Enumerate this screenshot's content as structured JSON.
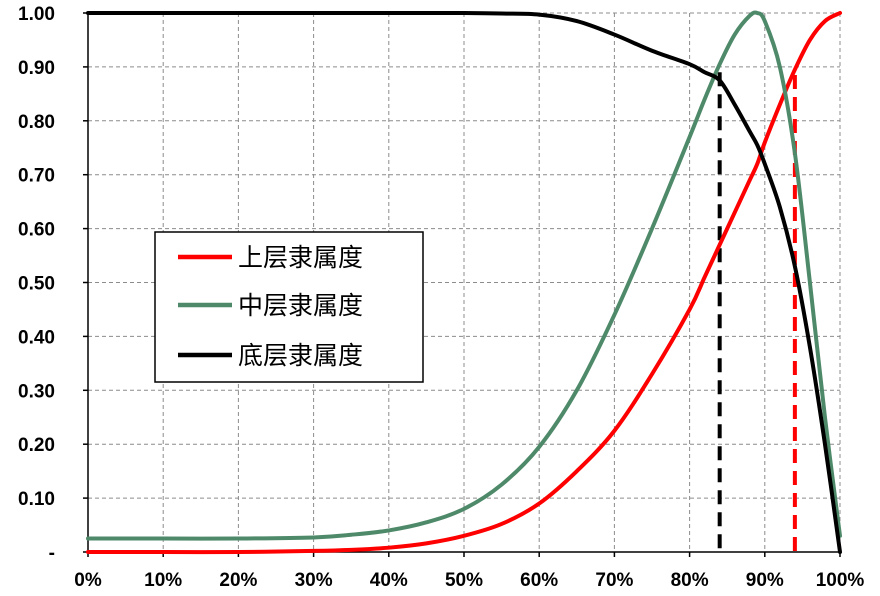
{
  "chart_data": {
    "type": "line",
    "title": "",
    "xlabel": "",
    "ylabel": "",
    "xlim": [
      0,
      100
    ],
    "ylim": [
      0,
      1
    ],
    "grid": true,
    "legend_placement": "left-middle",
    "x_ticks": [
      "0%",
      "10%",
      "20%",
      "30%",
      "40%",
      "50%",
      "60%",
      "70%",
      "80%",
      "90%",
      "100%"
    ],
    "y_ticks": [
      "-",
      "0.10",
      "0.20",
      "0.30",
      "0.40",
      "0.50",
      "0.60",
      "0.70",
      "0.80",
      "0.90",
      "1.00"
    ],
    "x": [
      0,
      10,
      20,
      30,
      35,
      40,
      45,
      50,
      55,
      60,
      65,
      70,
      75,
      80,
      82,
      84,
      86,
      88,
      89,
      90,
      92,
      94,
      96,
      98,
      100
    ],
    "series": [
      {
        "name": "上层隶属度",
        "color": "#ff0000",
        "values": [
          0.0,
          0.0,
          0.0,
          0.002,
          0.004,
          0.008,
          0.016,
          0.03,
          0.052,
          0.09,
          0.15,
          0.225,
          0.33,
          0.45,
          0.51,
          0.57,
          0.63,
          0.69,
          0.72,
          0.76,
          0.83,
          0.895,
          0.95,
          0.985,
          1.0
        ]
      },
      {
        "name": "中层隶属度",
        "color": "#4e8a6a",
        "values": [
          0.025,
          0.025,
          0.025,
          0.027,
          0.032,
          0.04,
          0.055,
          0.08,
          0.125,
          0.195,
          0.3,
          0.44,
          0.6,
          0.77,
          0.84,
          0.905,
          0.96,
          0.995,
          1.0,
          0.985,
          0.9,
          0.74,
          0.5,
          0.25,
          0.03
        ]
      },
      {
        "name": "底层隶属度",
        "color": "#000000",
        "values": [
          1.0,
          1.0,
          1.0,
          1.0,
          1.0,
          1.0,
          1.0,
          1.0,
          0.999,
          0.997,
          0.985,
          0.96,
          0.93,
          0.905,
          0.89,
          0.875,
          0.83,
          0.78,
          0.755,
          0.72,
          0.64,
          0.53,
          0.38,
          0.2,
          0.0
        ]
      }
    ],
    "vertical_markers": [
      {
        "x": 84,
        "y": 0.89,
        "color": "#000000"
      },
      {
        "x": 94,
        "y": 0.885,
        "color": "#ff0000"
      }
    ]
  }
}
